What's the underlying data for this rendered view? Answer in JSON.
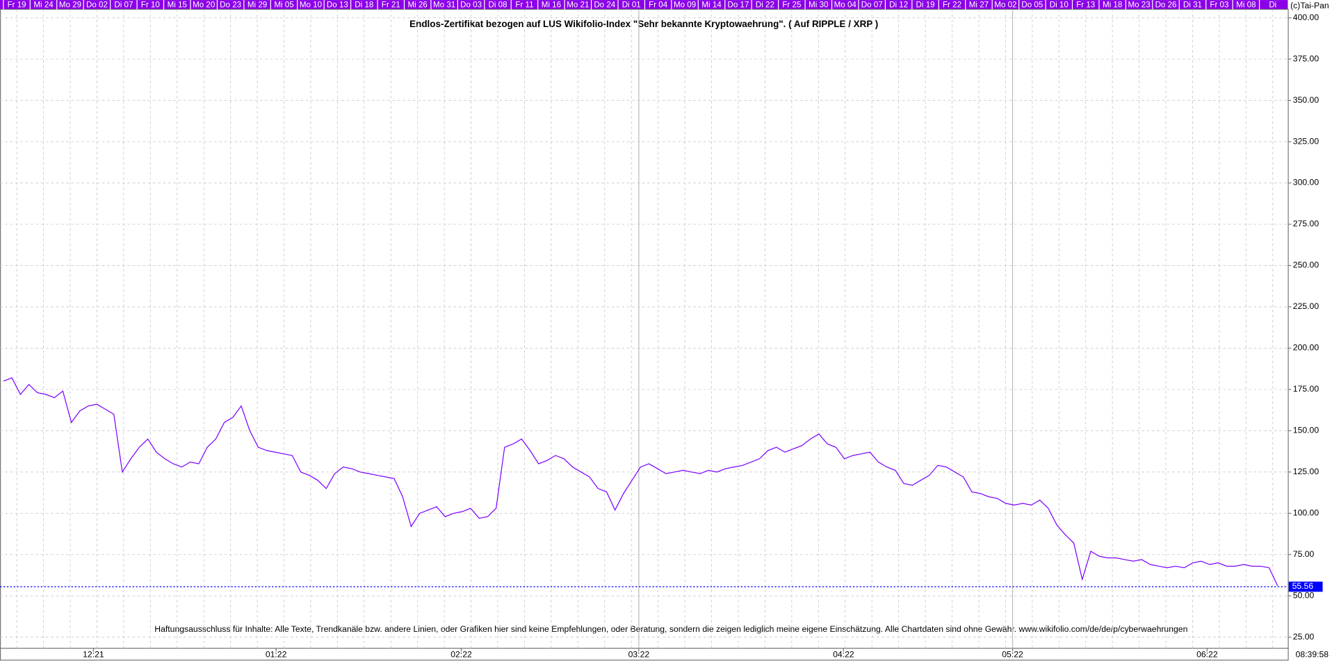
{
  "chart_data": {
    "type": "line",
    "title": "Endlos-Zertifikat bezogen auf LUS Wikifolio-Index \"Sehr bekannte Kryptowaehrung\". ( Auf RIPPLE / XRP )",
    "footer": "Haftungsausschluss für Inhalte: Alle Texte, Trendkanäle bzw. andere Linien, oder Grafiken hier sind keine Empfehlungen, oder Beratung, sondern die zeigen lediglich meine eigene Einschätzung. Alle Chartdaten sind ohne Gewähr.  www.wikifolio.com/de/de/p/cyberwaehrungen",
    "copyright": "(c)Tai-Pan",
    "time": "08:39:58",
    "top_labels": [
      "Fr 19",
      "Mi 24",
      "Mo 29",
      "Do 02",
      "Di 07",
      "Fr 10",
      "Mi 15",
      "Mo 20",
      "Do 23",
      "Mi 29",
      "Mi 05",
      "Mo 10",
      "Do 13",
      "Di 18",
      "Fr 21",
      "Mi 26",
      "Mo 31",
      "Do 03",
      "Di 08",
      "Fr 11",
      "Mi 16",
      "Mo 21",
      "Do 24",
      "Di 01",
      "Fr 04",
      "Mo 09",
      "Mi 14",
      "Do 17",
      "Di 22",
      "Fr 25",
      "Mi 30",
      "Mo 04",
      "Do 07",
      "Di 12",
      "Di 19",
      "Fr 22",
      "Mi 27",
      "Mo 02",
      "Do 05",
      "Di 10",
      "Fr 13",
      "Mi 18",
      "Mo 23",
      "Do 26",
      "Di 31",
      "Fr 03",
      "Mi 08",
      "Di"
    ],
    "color": "#7a00ff",
    "values": [
      180,
      182,
      172,
      178,
      173,
      172,
      170,
      174,
      155,
      162,
      165,
      166,
      163,
      160,
      125,
      133,
      140,
      145,
      137,
      133,
      130,
      128,
      131,
      130,
      140,
      145,
      155,
      158,
      165,
      150,
      140,
      138,
      137,
      136,
      135,
      125,
      123,
      120,
      115,
      124,
      128,
      127,
      125,
      124,
      123,
      122,
      121,
      110,
      92,
      100,
      102,
      104,
      98,
      100,
      101,
      103,
      97,
      98,
      103,
      140,
      142,
      145,
      138,
      130,
      132,
      135,
      133,
      128,
      125,
      122,
      115,
      113,
      102,
      112,
      120,
      128,
      130,
      127,
      124,
      125,
      126,
      125,
      124,
      126,
      125,
      127,
      128,
      129,
      131,
      133,
      138,
      140,
      137,
      139,
      141,
      145,
      148,
      142,
      140,
      133,
      135,
      136,
      137,
      131,
      128,
      126,
      118,
      117,
      120,
      123,
      129,
      128,
      125,
      122,
      113,
      112,
      110,
      109,
      106,
      105,
      106,
      105,
      108,
      103,
      93,
      87,
      82,
      60,
      77,
      74,
      73,
      73,
      72,
      71,
      72,
      69,
      68,
      67,
      68,
      67,
      70,
      71,
      69,
      70,
      68,
      68,
      69,
      68,
      68,
      67,
      56
    ],
    "last_value": 55.56,
    "last_value_color": "#0000ff",
    "xlim": [
      0,
      150
    ],
    "xticks": [
      {
        "value": 10.6,
        "label": "12:21"
      },
      {
        "value": 32.1,
        "label": "01:22"
      },
      {
        "value": 53.9,
        "label": "02:22"
      },
      {
        "value": 74.8,
        "label": "03:22"
      },
      {
        "value": 98.9,
        "label": "04:22"
      },
      {
        "value": 118.8,
        "label": "05:22"
      },
      {
        "value": 141.7,
        "label": "06:22"
      }
    ],
    "ylim": [
      18.3,
      404.6
    ],
    "yticks": [
      {
        "value": 25,
        "label": "25.00"
      },
      {
        "value": 50,
        "label": "50.00"
      },
      {
        "value": 75,
        "label": "75.00"
      },
      {
        "value": 100,
        "label": "100.00"
      },
      {
        "value": 125,
        "label": "125.00"
      },
      {
        "value": 150,
        "label": "150.00"
      },
      {
        "value": 175,
        "label": "175.00"
      },
      {
        "value": 200,
        "label": "200.00"
      },
      {
        "value": 225,
        "label": "225.00"
      },
      {
        "value": 250,
        "label": "250.00"
      },
      {
        "value": 275,
        "label": "275.00"
      },
      {
        "value": 300,
        "label": "300.00"
      },
      {
        "value": 325,
        "label": "325.00"
      },
      {
        "value": 350,
        "label": "350.00"
      },
      {
        "value": 375,
        "label": "375.00"
      },
      {
        "value": 400,
        "label": "400.00"
      }
    ],
    "grid": true
  }
}
